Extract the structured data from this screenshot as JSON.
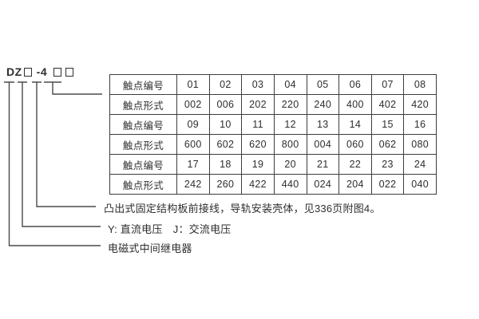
{
  "model": {
    "full_label": "DZ□-4□□",
    "prefix": "DZ",
    "dash_segment": "-4"
  },
  "table": {
    "rows": [
      {
        "label": "触点编号",
        "values": [
          "01",
          "02",
          "03",
          "04",
          "05",
          "06",
          "07",
          "08"
        ]
      },
      {
        "label": "触点形式",
        "values": [
          "002",
          "006",
          "202",
          "220",
          "240",
          "400",
          "402",
          "420"
        ]
      },
      {
        "label": "触点编号",
        "values": [
          "09",
          "10",
          "11",
          "12",
          "13",
          "14",
          "15",
          "16"
        ]
      },
      {
        "label": "触点形式",
        "values": [
          "600",
          "602",
          "620",
          "800",
          "004",
          "060",
          "062",
          "080"
        ]
      },
      {
        "label": "触点编号",
        "values": [
          "17",
          "18",
          "19",
          "20",
          "21",
          "22",
          "23",
          "24"
        ]
      },
      {
        "label": "触点形式",
        "values": [
          "242",
          "260",
          "422",
          "440",
          "024",
          "204",
          "022",
          "040"
        ]
      }
    ]
  },
  "notes": {
    "mounting": "凸出式固定结构板前接线，导轨安装壳体，见336页附图4。",
    "voltage": "Y: 直流电压　J：交流电压",
    "relay_type": "电磁式中间继电器"
  },
  "colors": {
    "text": "#2e2e2e",
    "line": "#4a4a4a",
    "table_border": "#3d3d3d",
    "background": "#ffffff"
  }
}
